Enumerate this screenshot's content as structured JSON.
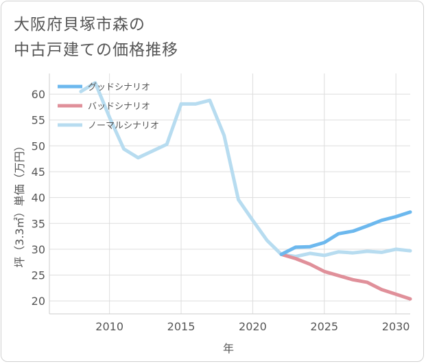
{
  "chart_data": {
    "type": "line",
    "title_lines": [
      "大阪府貝塚市森の",
      "中古戸建ての価格推移"
    ],
    "xlabel": "年",
    "ylabel": "坪（3.3㎡）単価（万円）",
    "xlim": [
      2005.8,
      2031
    ],
    "ylim": [
      17.5,
      64
    ],
    "x_ticks": [
      2010,
      2015,
      2020,
      2025,
      2030
    ],
    "y_ticks": [
      20,
      25,
      30,
      35,
      40,
      45,
      50,
      55,
      60
    ],
    "grid": true,
    "legend_position": "top-left",
    "series": [
      {
        "name": "グッドシナリオ",
        "color": "#6cb8ee",
        "x": [
          2022,
          2023,
          2024,
          2025,
          2026,
          2027,
          2028,
          2029,
          2030,
          2031
        ],
        "values": [
          29.0,
          30.4,
          30.5,
          31.3,
          33.0,
          33.5,
          34.5,
          35.6,
          36.3,
          37.2
        ]
      },
      {
        "name": "バッドシナリオ",
        "color": "#e0909a",
        "x": [
          2022,
          2023,
          2024,
          2025,
          2026,
          2027,
          2028,
          2029,
          2030,
          2031
        ],
        "values": [
          29.0,
          28.2,
          27.1,
          25.7,
          24.9,
          24.1,
          23.6,
          22.2,
          21.3,
          20.4
        ]
      },
      {
        "name": "ノーマルシナリオ",
        "color": "#b7dcf0",
        "x": [
          2008,
          2009,
          2010,
          2011,
          2012,
          2013,
          2014,
          2015,
          2016,
          2017,
          2018,
          2019,
          2020,
          2021,
          2022,
          2023,
          2024,
          2025,
          2026,
          2027,
          2028,
          2029,
          2030,
          2031
        ],
        "values": [
          60.5,
          62.2,
          55.5,
          49.4,
          47.7,
          49.0,
          50.3,
          58.1,
          58.1,
          58.8,
          52.0,
          39.6,
          35.6,
          31.7,
          29.0,
          28.6,
          29.2,
          28.8,
          29.5,
          29.3,
          29.6,
          29.4,
          30.0,
          29.7
        ]
      }
    ]
  }
}
